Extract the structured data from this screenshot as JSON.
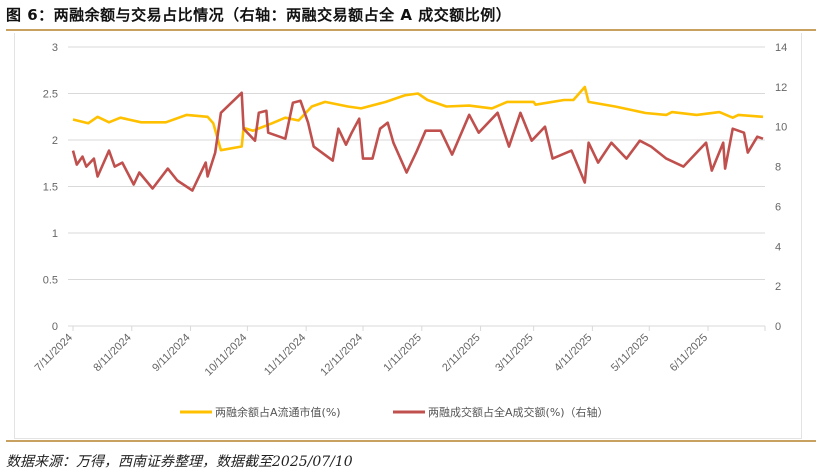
{
  "title": "图 6：两融余额与交易占比情况（右轴：两融交易额占全 A 成交额比例）",
  "source": "数据来源：万得，西南证券整理，数据截至2025/07/10",
  "chart_data": {
    "type": "line",
    "title": "",
    "x_range": [
      "2024-07-11",
      "2025-07-10"
    ],
    "x_ticks": [
      "7/11/2024",
      "8/11/2024",
      "9/11/2024",
      "10/11/2024",
      "11/11/2024",
      "12/11/2024",
      "1/11/2025",
      "2/11/2025",
      "3/11/2025",
      "4/11/2025",
      "5/11/2025",
      "6/11/2025"
    ],
    "y_left": {
      "range": [
        0,
        3
      ],
      "ticks": [
        "0",
        "0.5",
        "1",
        "1.5",
        "2",
        "2.5",
        "3"
      ]
    },
    "y_right": {
      "range": [
        0,
        14
      ],
      "ticks": [
        "0",
        "2",
        "4",
        "6",
        "8",
        "10",
        "12",
        "14"
      ]
    },
    "grid": true,
    "legend_position": "bottom",
    "series": [
      {
        "name": "两融余额占A流通市值(%)",
        "axis": "left",
        "color": "#FFC000",
        "points": [
          [
            "2024-07-11",
            2.22
          ],
          [
            "2024-07-19",
            2.18
          ],
          [
            "2024-07-24",
            2.25
          ],
          [
            "2024-07-30",
            2.19
          ],
          [
            "2024-08-05",
            2.24
          ],
          [
            "2024-08-16",
            2.19
          ],
          [
            "2024-08-29",
            2.19
          ],
          [
            "2024-09-09",
            2.27
          ],
          [
            "2024-09-20",
            2.25
          ],
          [
            "2024-09-23",
            2.18
          ],
          [
            "2024-09-27",
            1.89
          ],
          [
            "2024-10-08",
            1.93
          ],
          [
            "2024-10-09",
            2.13
          ],
          [
            "2024-10-14",
            2.1
          ],
          [
            "2024-10-24",
            2.18
          ],
          [
            "2024-10-31",
            2.24
          ],
          [
            "2024-11-07",
            2.21
          ],
          [
            "2024-11-14",
            2.36
          ],
          [
            "2024-11-21",
            2.41
          ],
          [
            "2024-12-03",
            2.36
          ],
          [
            "2024-12-10",
            2.34
          ],
          [
            "2024-12-23",
            2.41
          ],
          [
            "2025-01-02",
            2.48
          ],
          [
            "2025-01-09",
            2.5
          ],
          [
            "2025-01-14",
            2.43
          ],
          [
            "2025-01-24",
            2.36
          ],
          [
            "2025-02-05",
            2.37
          ],
          [
            "2025-02-17",
            2.34
          ],
          [
            "2025-02-25",
            2.41
          ],
          [
            "2025-03-11",
            2.41
          ],
          [
            "2025-03-12",
            2.38
          ],
          [
            "2025-03-27",
            2.43
          ],
          [
            "2025-04-01",
            2.43
          ],
          [
            "2025-04-07",
            2.57
          ],
          [
            "2025-04-09",
            2.41
          ],
          [
            "2025-04-23",
            2.36
          ],
          [
            "2025-05-09",
            2.29
          ],
          [
            "2025-05-20",
            2.27
          ],
          [
            "2025-05-23",
            2.3
          ],
          [
            "2025-06-05",
            2.27
          ],
          [
            "2025-06-17",
            2.3
          ],
          [
            "2025-06-24",
            2.24
          ],
          [
            "2025-06-27",
            2.27
          ],
          [
            "2025-07-10",
            2.25
          ]
        ]
      },
      {
        "name": "两融成交额占全A成交额(%)（右轴）",
        "axis": "right",
        "color": "#C0504D",
        "points": [
          [
            "2024-07-11",
            8.8
          ],
          [
            "2024-07-13",
            8.1
          ],
          [
            "2024-07-16",
            8.5
          ],
          [
            "2024-07-18",
            8.0
          ],
          [
            "2024-07-22",
            8.4
          ],
          [
            "2024-07-24",
            7.5
          ],
          [
            "2024-07-30",
            8.8
          ],
          [
            "2024-08-02",
            8.0
          ],
          [
            "2024-08-06",
            8.2
          ],
          [
            "2024-08-12",
            7.1
          ],
          [
            "2024-08-15",
            7.7
          ],
          [
            "2024-08-22",
            6.9
          ],
          [
            "2024-08-30",
            7.9
          ],
          [
            "2024-09-04",
            7.3
          ],
          [
            "2024-09-12",
            6.8
          ],
          [
            "2024-09-19",
            8.2
          ],
          [
            "2024-09-20",
            7.5
          ],
          [
            "2024-09-24",
            8.7
          ],
          [
            "2024-09-27",
            10.7
          ],
          [
            "2024-10-08",
            11.7
          ],
          [
            "2024-10-09",
            9.9
          ],
          [
            "2024-10-15",
            9.3
          ],
          [
            "2024-10-17",
            10.7
          ],
          [
            "2024-10-21",
            10.8
          ],
          [
            "2024-10-22",
            9.7
          ],
          [
            "2024-10-28",
            9.5
          ],
          [
            "2024-10-31",
            9.4
          ],
          [
            "2024-11-04",
            11.2
          ],
          [
            "2024-11-08",
            11.3
          ],
          [
            "2024-11-12",
            10.2
          ],
          [
            "2024-11-15",
            9.0
          ],
          [
            "2024-11-25",
            8.3
          ],
          [
            "2024-11-28",
            9.9
          ],
          [
            "2024-12-02",
            9.1
          ],
          [
            "2024-12-05",
            9.7
          ],
          [
            "2024-12-09",
            10.4
          ],
          [
            "2024-12-11",
            8.4
          ],
          [
            "2024-12-16",
            8.4
          ],
          [
            "2024-12-20",
            9.9
          ],
          [
            "2024-12-24",
            10.2
          ],
          [
            "2024-12-27",
            9.2
          ],
          [
            "2025-01-03",
            7.7
          ],
          [
            "2025-01-08",
            8.7
          ],
          [
            "2025-01-13",
            9.8
          ],
          [
            "2025-01-21",
            9.8
          ],
          [
            "2025-01-27",
            8.6
          ],
          [
            "2025-02-05",
            10.6
          ],
          [
            "2025-02-10",
            9.7
          ],
          [
            "2025-02-20",
            10.7
          ],
          [
            "2025-02-26",
            9.0
          ],
          [
            "2025-03-04",
            10.7
          ],
          [
            "2025-03-10",
            9.3
          ],
          [
            "2025-03-17",
            10.0
          ],
          [
            "2025-03-21",
            8.4
          ],
          [
            "2025-03-31",
            8.8
          ],
          [
            "2025-04-07",
            7.2
          ],
          [
            "2025-04-09",
            9.2
          ],
          [
            "2025-04-14",
            8.2
          ],
          [
            "2025-04-21",
            9.2
          ],
          [
            "2025-04-29",
            8.4
          ],
          [
            "2025-05-06",
            9.3
          ],
          [
            "2025-05-12",
            9.0
          ],
          [
            "2025-05-20",
            8.4
          ],
          [
            "2025-05-29",
            8.0
          ],
          [
            "2025-06-06",
            8.8
          ],
          [
            "2025-06-10",
            9.2
          ],
          [
            "2025-06-13",
            7.8
          ],
          [
            "2025-06-19",
            9.2
          ],
          [
            "2025-06-20",
            7.9
          ],
          [
            "2025-06-24",
            9.9
          ],
          [
            "2025-06-30",
            9.7
          ],
          [
            "2025-07-02",
            8.7
          ],
          [
            "2025-07-07",
            9.5
          ],
          [
            "2025-07-10",
            9.4
          ]
        ]
      }
    ]
  }
}
